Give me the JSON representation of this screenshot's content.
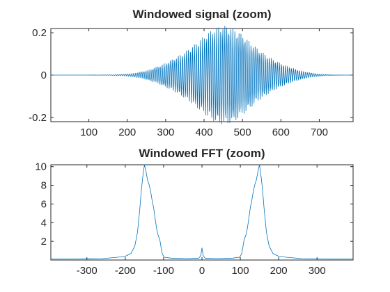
{
  "chart_data": [
    {
      "type": "line",
      "title": "Windowed signal (zoom)",
      "xlabel": "",
      "ylabel": "",
      "xlim": [
        1,
        788
      ],
      "ylim": [
        -0.22,
        0.22
      ],
      "xticks": [
        100,
        200,
        300,
        400,
        500,
        600,
        700
      ],
      "xtick_labels": [
        "100",
        "200",
        "300",
        "400",
        "500",
        "600",
        "700"
      ],
      "yticks": [
        0.2,
        0,
        -0.2
      ],
      "ytick_labels": [
        "0.2",
        "0",
        "-0.2"
      ],
      "grid": false,
      "color": "#0072BD",
      "series": [
        {
          "kind": "windowed-oscillation",
          "samples": 788,
          "envelope_center": 450,
          "envelope_width": 130,
          "peak_amplitude": 0.215,
          "cycles_per_sample": 0.19
        }
      ]
    },
    {
      "type": "line",
      "title": "Windowed FFT (zoom)",
      "xlabel": "",
      "ylabel": "",
      "xlim": [
        -394,
        394
      ],
      "ylim": [
        0,
        10.2
      ],
      "xticks": [
        -300,
        -200,
        -100,
        0,
        100,
        200,
        300
      ],
      "xtick_labels": [
        "-300",
        "-200",
        "-100",
        "0",
        "100",
        "200",
        "300"
      ],
      "yticks": [
        2,
        4,
        6,
        8,
        10
      ],
      "ytick_labels": [
        "2",
        "4",
        "6",
        "8",
        "10"
      ],
      "grid": false,
      "color": "#0072BD",
      "series": [
        {
          "kind": "spectrum-magnitude",
          "points": [
            [
              -394,
              0.1
            ],
            [
              -330,
              0.12
            ],
            [
              -260,
              0.15
            ],
            [
              -220,
              0.3
            ],
            [
              -200,
              0.4
            ],
            [
              -185,
              0.7
            ],
            [
              -175,
              1.5
            ],
            [
              -168,
              3.0
            ],
            [
              -162,
              5.5
            ],
            [
              -158,
              7.5
            ],
            [
              -154,
              9.0
            ],
            [
              -150,
              10.2
            ],
            [
              -146,
              9.5
            ],
            [
              -142,
              8.6
            ],
            [
              -138,
              8.1
            ],
            [
              -134,
              7.4
            ],
            [
              -130,
              6.4
            ],
            [
              -126,
              5.6
            ],
            [
              -122,
              4.4
            ],
            [
              -118,
              3.3
            ],
            [
              -114,
              2.6
            ],
            [
              -110,
              2.2
            ],
            [
              -106,
              1.2
            ],
            [
              -103,
              0.6
            ],
            [
              -98,
              0.3
            ],
            [
              -80,
              0.2
            ],
            [
              -40,
              0.15
            ],
            [
              -8,
              0.2
            ],
            [
              -3,
              0.5
            ],
            [
              0,
              1.3
            ],
            [
              3,
              0.5
            ],
            [
              8,
              0.2
            ],
            [
              40,
              0.15
            ],
            [
              80,
              0.2
            ],
            [
              98,
              0.3
            ],
            [
              103,
              0.6
            ],
            [
              106,
              1.2
            ],
            [
              110,
              2.2
            ],
            [
              114,
              2.6
            ],
            [
              118,
              3.3
            ],
            [
              122,
              4.4
            ],
            [
              126,
              5.6
            ],
            [
              130,
              6.4
            ],
            [
              134,
              7.4
            ],
            [
              138,
              8.1
            ],
            [
              142,
              8.6
            ],
            [
              146,
              9.5
            ],
            [
              150,
              10.2
            ],
            [
              154,
              9.0
            ],
            [
              158,
              7.5
            ],
            [
              162,
              5.5
            ],
            [
              168,
              3.0
            ],
            [
              175,
              1.5
            ],
            [
              185,
              0.7
            ],
            [
              200,
              0.4
            ],
            [
              220,
              0.3
            ],
            [
              260,
              0.15
            ],
            [
              330,
              0.12
            ],
            [
              394,
              0.1
            ]
          ]
        }
      ]
    }
  ]
}
